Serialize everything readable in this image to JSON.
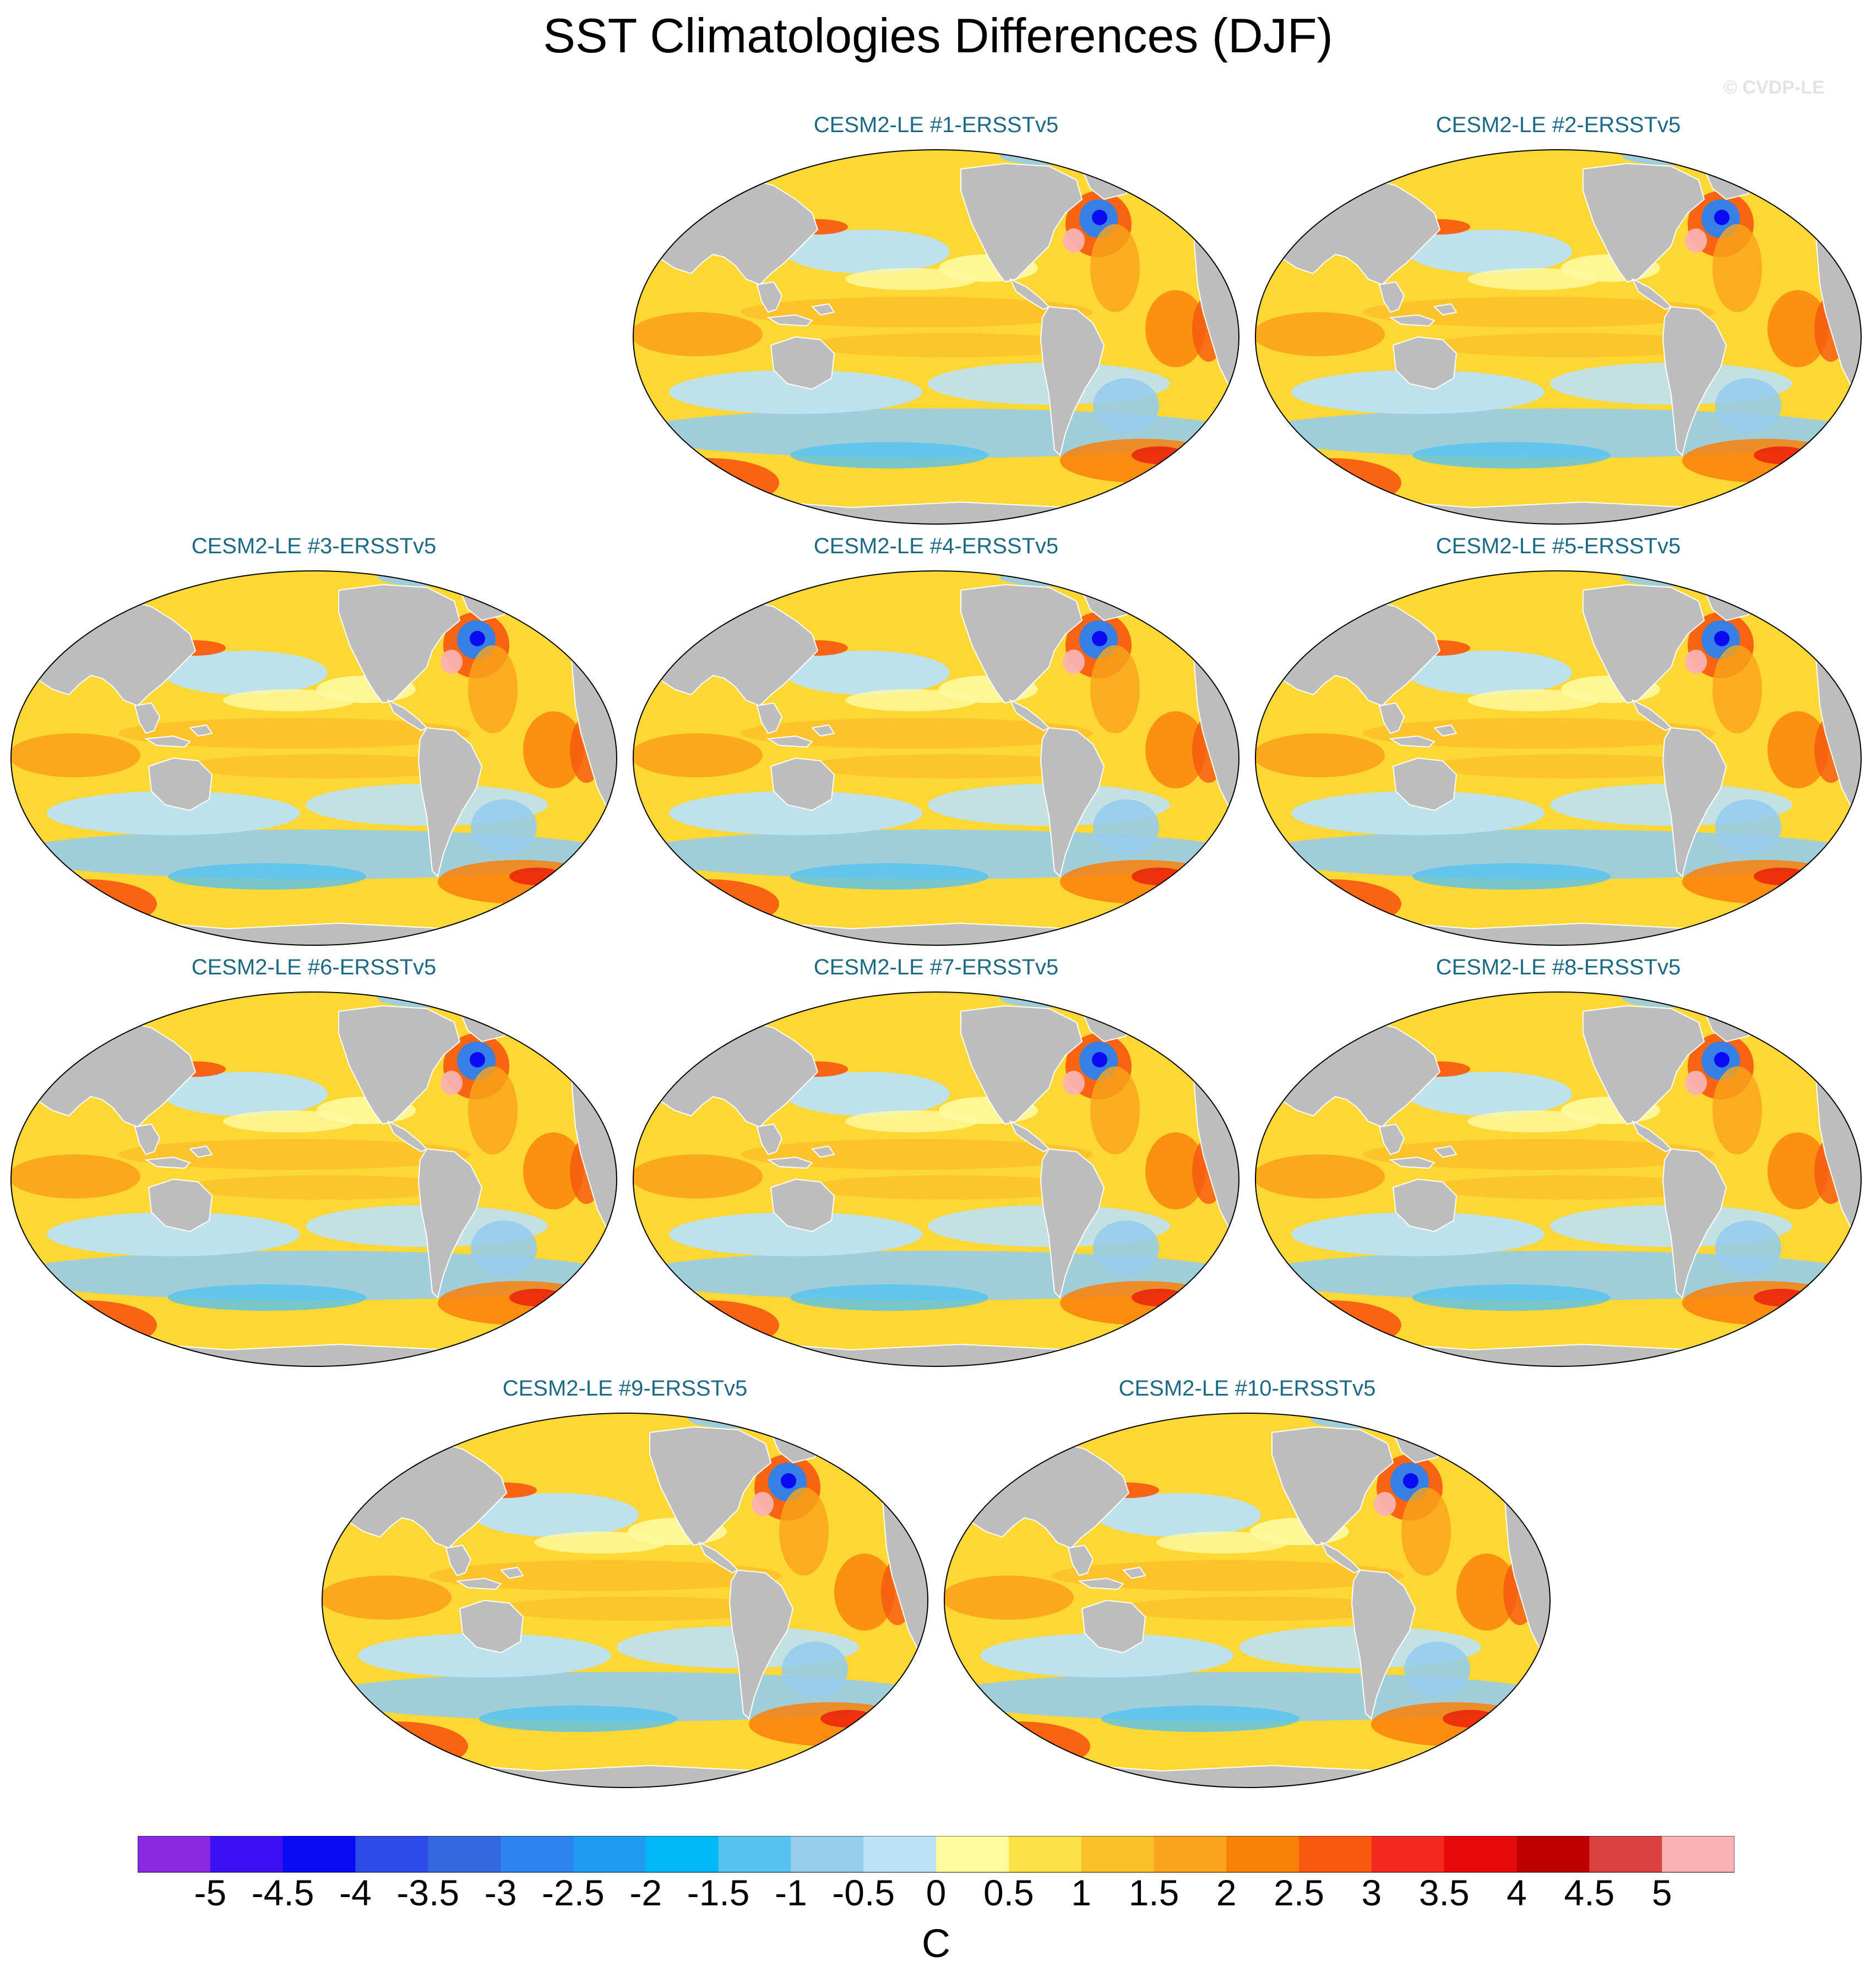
{
  "title": "SST Climatologies Differences (DJF)",
  "copyright": "© CVDP-LE",
  "panels": [
    {
      "label": "CESM2-LE #1-ERSSTv5"
    },
    {
      "label": "CESM2-LE #2-ERSSTv5"
    },
    {
      "label": "CESM2-LE #3-ERSSTv5"
    },
    {
      "label": "CESM2-LE #4-ERSSTv5"
    },
    {
      "label": "CESM2-LE #5-ERSSTv5"
    },
    {
      "label": "CESM2-LE #6-ERSSTv5"
    },
    {
      "label": "CESM2-LE #7-ERSSTv5"
    },
    {
      "label": "CESM2-LE #8-ERSSTv5"
    },
    {
      "label": "CESM2-LE #9-ERSSTv5"
    },
    {
      "label": "CESM2-LE #10-ERSSTv5"
    }
  ],
  "colorbar": {
    "units": "C",
    "labels": [
      "-5",
      "-4.5",
      "-4",
      "-3.5",
      "-3",
      "-2.5",
      "-2",
      "-1.5",
      "-1",
      "-0.5",
      "0",
      "0.5",
      "1",
      "1.5",
      "2",
      "2.5",
      "3",
      "3.5",
      "4",
      "4.5",
      "5"
    ],
    "colors": [
      "#8a2be2",
      "#3c10f5",
      "#0a0af5",
      "#2d4be8",
      "#3466e0",
      "#2c82f0",
      "#1e9cf2",
      "#00b8f5",
      "#55c3f0",
      "#96ccec",
      "#bce2f6",
      "#fffaa0",
      "#fde04a",
      "#fbbf28",
      "#f9a41a",
      "#f98008",
      "#f85810",
      "#f5281e",
      "#e60a0a",
      "#c00000",
      "#da4040",
      "#fab2b2"
    ]
  },
  "map_colors": {
    "land": "#bdbdbd",
    "ocean_base": "#fdd835",
    "coast": "#ffffff"
  }
}
